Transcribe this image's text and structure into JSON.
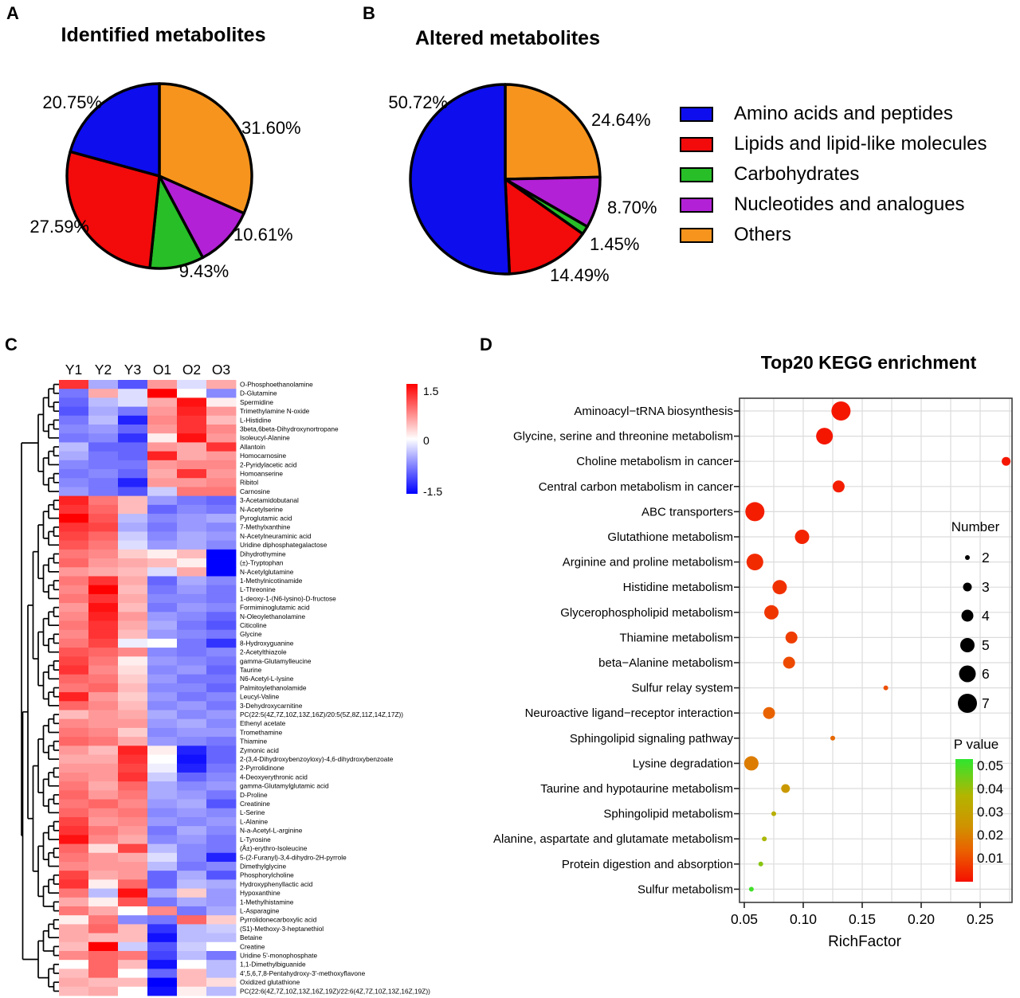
{
  "panels": {
    "a": "A",
    "b": "B",
    "c": "C",
    "d": "D"
  },
  "categories": [
    {
      "label": "Amino acids and peptides",
      "color": "#0D0DEE"
    },
    {
      "label": "Lipids and lipid-like molecules",
      "color": "#F30A0A"
    },
    {
      "label": "Carbohydrates",
      "color": "#27BE27"
    },
    {
      "label": "Nucleotides and analogues",
      "color": "#B221D6"
    },
    {
      "label": "Others",
      "color": "#F7941D"
    }
  ],
  "chart_data": [
    {
      "type": "pie",
      "panel": "A",
      "title": "Identified metabolites",
      "slices": [
        {
          "category": 4,
          "label": "31.60%",
          "value": 31.6
        },
        {
          "category": 3,
          "label": "10.61%",
          "value": 10.61
        },
        {
          "category": 2,
          "label": "9.43%",
          "value": 9.43
        },
        {
          "category": 1,
          "label": "27.59%",
          "value": 27.59
        },
        {
          "category": 0,
          "label": "20.75%",
          "value": 20.75
        }
      ]
    },
    {
      "type": "pie",
      "panel": "B",
      "title": "Altered metabolites",
      "slices": [
        {
          "category": 4,
          "label": "24.64%",
          "value": 24.64
        },
        {
          "category": 3,
          "label": "8.70%",
          "value": 8.7
        },
        {
          "category": 2,
          "label": "1.45%",
          "value": 1.45
        },
        {
          "category": 1,
          "label": "14.49%",
          "value": 14.49
        },
        {
          "category": 0,
          "label": "50.72%",
          "value": 50.72
        }
      ]
    },
    {
      "type": "heatmap",
      "panel": "C",
      "columns": [
        "Y1",
        "Y2",
        "Y3",
        "O1",
        "O2",
        "O3"
      ],
      "colorbar": {
        "max": 1.5,
        "mid": 0,
        "min": -1.5,
        "labels": [
          "1.5",
          "0",
          "-1.5"
        ],
        "max_color": "#FF0000",
        "mid_color": "#FFFFFF",
        "min_color": "#0000FF"
      },
      "rows": [
        {
          "name": "O-Phosphoethanolamine",
          "values": [
            1.2,
            -0.5,
            -1.0,
            0.6,
            -0.2,
            0.5
          ]
        },
        {
          "name": "D-Glutamine",
          "values": [
            -0.8,
            0.5,
            -0.2,
            1.5,
            0.0,
            -0.7
          ]
        },
        {
          "name": "Spermidine",
          "values": [
            -0.9,
            -0.4,
            -0.2,
            0.5,
            1.4,
            0.1
          ]
        },
        {
          "name": "Trimethylamine N-oxide",
          "values": [
            -1.0,
            -0.5,
            -0.8,
            0.6,
            1.3,
            0.6
          ]
        },
        {
          "name": "L-Histidine",
          "values": [
            -0.8,
            -0.4,
            -1.3,
            0.7,
            1.2,
            0.4
          ]
        },
        {
          "name": "3beta,6beta-Dihydroxynortropane",
          "values": [
            -0.7,
            -0.6,
            -0.9,
            0.6,
            1.2,
            0.7
          ]
        },
        {
          "name": "Isoleucyl-Alanine",
          "values": [
            -0.8,
            -0.7,
            -1.2,
            0.1,
            1.4,
            0.6
          ]
        },
        {
          "name": "Allantoin",
          "values": [
            -0.4,
            -0.9,
            -0.9,
            0.6,
            0.5,
            1.2
          ]
        },
        {
          "name": "Homocarnosine",
          "values": [
            -0.5,
            -0.8,
            -0.9,
            1.3,
            0.5,
            0.6
          ]
        },
        {
          "name": "2-Pyridylacetic acid",
          "values": [
            -0.7,
            -0.8,
            -0.8,
            0.6,
            0.7,
            0.7
          ]
        },
        {
          "name": "Homoanserine",
          "values": [
            -0.8,
            -0.7,
            -0.9,
            0.5,
            1.2,
            0.6
          ]
        },
        {
          "name": "Ribitol",
          "values": [
            -0.7,
            -0.8,
            -1.3,
            0.6,
            0.6,
            0.7
          ]
        },
        {
          "name": "Carnosine",
          "values": [
            -0.6,
            -0.8,
            -1.0,
            -0.3,
            0.8,
            0.8
          ]
        },
        {
          "name": "3-Acetamidobutanal",
          "values": [
            1.3,
            0.8,
            0.4,
            -0.6,
            -0.8,
            -0.9
          ]
        },
        {
          "name": "N-Acetylserine",
          "values": [
            1.2,
            0.9,
            0.4,
            -0.9,
            -0.7,
            -0.8
          ]
        },
        {
          "name": "Pyroglutamic acid",
          "values": [
            1.5,
            1.0,
            -0.4,
            -0.7,
            -0.6,
            -0.5
          ]
        },
        {
          "name": "7-Methylxanthine",
          "values": [
            1.2,
            1.1,
            -0.5,
            -0.8,
            -0.6,
            -0.7
          ]
        },
        {
          "name": "N-Acetylneuraminic acid",
          "values": [
            1.1,
            0.9,
            -0.3,
            -0.7,
            -0.5,
            -0.6
          ]
        },
        {
          "name": "Uridine diphosphategalactose",
          "values": [
            1.0,
            0.8,
            -0.2,
            -0.6,
            -0.5,
            -0.7
          ]
        },
        {
          "name": "Dihydrothymine",
          "values": [
            0.8,
            0.7,
            0.3,
            0.1,
            0.4,
            -1.5
          ]
        },
        {
          "name": "(±)-Tryptophan",
          "values": [
            0.9,
            0.6,
            0.5,
            0.4,
            0.1,
            -1.5
          ]
        },
        {
          "name": "N-Acetylglutamine",
          "values": [
            0.6,
            0.5,
            0.4,
            -0.2,
            0.5,
            -1.5
          ]
        },
        {
          "name": "1-Methylnicotinamide",
          "values": [
            0.8,
            1.2,
            0.5,
            -0.9,
            -0.5,
            -0.7
          ]
        },
        {
          "name": "L-Threonine",
          "values": [
            0.7,
            1.5,
            0.4,
            -0.8,
            -0.6,
            -0.8
          ]
        },
        {
          "name": "1-deoxy-1-(N6-lysino)-D-fructose",
          "values": [
            0.8,
            1.2,
            0.5,
            -0.7,
            -0.7,
            -0.8
          ]
        },
        {
          "name": "Formiminoglutamic acid",
          "values": [
            0.6,
            1.4,
            0.4,
            -0.8,
            -0.6,
            -0.7
          ]
        },
        {
          "name": "N-Oleoylethanolamine",
          "values": [
            0.7,
            1.3,
            0.6,
            -0.6,
            -0.7,
            -0.9
          ]
        },
        {
          "name": "Citicoline",
          "values": [
            0.8,
            1.2,
            0.5,
            -0.5,
            -0.8,
            -1.0
          ]
        },
        {
          "name": "Glycine",
          "values": [
            0.7,
            1.2,
            0.4,
            -0.6,
            -0.7,
            -0.8
          ]
        },
        {
          "name": "8-Hydroxyguanine",
          "values": [
            0.8,
            1.1,
            -0.1,
            0.0,
            -0.8,
            -1.2
          ]
        },
        {
          "name": "2-Acetylthiazole",
          "values": [
            1.0,
            0.9,
            0.7,
            -0.7,
            -0.8,
            -0.7
          ]
        },
        {
          "name": "gamma-Glutamylleucine",
          "values": [
            1.1,
            0.8,
            0.1,
            -0.6,
            -0.7,
            -0.8
          ]
        },
        {
          "name": "Taurine",
          "values": [
            1.2,
            0.7,
            0.2,
            -0.7,
            -0.6,
            -0.9
          ]
        },
        {
          "name": "N6-Acetyl-L-lysine",
          "values": [
            0.9,
            0.8,
            0.3,
            -0.6,
            -0.8,
            -0.8
          ]
        },
        {
          "name": "Palmitoylethanolamide",
          "values": [
            0.8,
            0.9,
            0.4,
            -0.7,
            -0.7,
            -0.9
          ]
        },
        {
          "name": "Leucyl-Valine",
          "values": [
            1.3,
            0.6,
            0.3,
            -0.6,
            -0.8,
            -0.7
          ]
        },
        {
          "name": "3-Dehydroxycarnitine",
          "values": [
            0.9,
            0.7,
            0.4,
            -0.7,
            -0.6,
            -0.8
          ]
        },
        {
          "name": "PC(22:5(4Z,7Z,10Z,13Z,16Z)/20:5(5Z,8Z,11Z,14Z,17Z))",
          "values": [
            0.4,
            0.6,
            0.5,
            -0.5,
            -0.7,
            -0.6
          ]
        },
        {
          "name": "Ethenyl acetate",
          "values": [
            0.7,
            0.6,
            0.6,
            -0.6,
            -0.5,
            -0.7
          ]
        },
        {
          "name": "Tromethamine",
          "values": [
            0.8,
            0.7,
            0.3,
            -0.7,
            -0.6,
            -0.6
          ]
        },
        {
          "name": "Thiamine",
          "values": [
            0.9,
            0.8,
            0.5,
            -0.6,
            -0.7,
            -0.8
          ]
        },
        {
          "name": "Zymonic acid",
          "values": [
            0.6,
            0.4,
            1.3,
            0.1,
            -1.3,
            -0.9
          ]
        },
        {
          "name": "2-(3,4-Dihydroxybenzoyloxy)-4,6-dihydroxybenzoate",
          "values": [
            0.5,
            0.5,
            1.2,
            0.0,
            -1.4,
            -0.9
          ]
        },
        {
          "name": "2-Pyrrolidinone",
          "values": [
            0.6,
            0.6,
            1.1,
            -0.1,
            -1.3,
            -0.8
          ]
        },
        {
          "name": "4-Deoxyerythronic acid",
          "values": [
            0.7,
            0.6,
            1.2,
            -0.3,
            -0.9,
            -0.7
          ]
        },
        {
          "name": "gamma-Glutamylglutamic acid",
          "values": [
            0.8,
            0.5,
            0.9,
            -0.5,
            -0.7,
            -0.6
          ]
        },
        {
          "name": "D-Proline",
          "values": [
            0.9,
            0.6,
            0.8,
            -0.5,
            -0.6,
            -0.8
          ]
        },
        {
          "name": "Creatinine",
          "values": [
            0.8,
            0.9,
            0.7,
            -0.6,
            -0.5,
            -1.0
          ]
        },
        {
          "name": "L-Serine",
          "values": [
            0.9,
            0.7,
            0.8,
            -0.7,
            -0.6,
            -0.7
          ]
        },
        {
          "name": "L-Alanine",
          "values": [
            1.1,
            0.6,
            0.7,
            -0.6,
            -0.7,
            -0.6
          ]
        },
        {
          "name": "N-a-Acetyl-L-arginine",
          "values": [
            1.2,
            0.8,
            0.6,
            -0.8,
            -0.5,
            -0.7
          ]
        },
        {
          "name": "L-Tyrosine",
          "values": [
            1.4,
            0.7,
            0.5,
            -0.7,
            -0.6,
            -0.8
          ]
        },
        {
          "name": "(Å±)-erythro-Isoleucine",
          "values": [
            0.9,
            0.2,
            1.1,
            -0.4,
            -0.7,
            -0.8
          ]
        },
        {
          "name": "5-(2-Furanyl)-3,4-dihydro-2H-pyrrole",
          "values": [
            0.8,
            0.6,
            0.5,
            -0.2,
            -0.7,
            -1.3
          ]
        },
        {
          "name": "Dimethylglycine",
          "values": [
            0.7,
            0.6,
            0.6,
            -0.4,
            -0.8,
            -0.7
          ]
        },
        {
          "name": "Phosphorylcholine",
          "values": [
            1.1,
            0.5,
            0.6,
            -0.9,
            -0.5,
            -1.0
          ]
        },
        {
          "name": "Hydroxyphenyllactic acid",
          "values": [
            1.2,
            0.1,
            0.9,
            -0.9,
            -0.4,
            -0.5
          ]
        },
        {
          "name": "Hypoxanthine",
          "values": [
            0.8,
            -0.4,
            1.4,
            -0.5,
            0.3,
            -0.6
          ]
        },
        {
          "name": "1-Methylhistamine",
          "values": [
            0.5,
            0.1,
            1.0,
            -0.8,
            -0.5,
            -0.6
          ]
        },
        {
          "name": "L-Asparagine",
          "values": [
            0.8,
            0.5,
            0.0,
            0.7,
            -0.8,
            -0.5
          ]
        },
        {
          "name": "Pyrrolidonecarboxylic acid",
          "values": [
            0.1,
            0.8,
            -0.7,
            -0.8,
            0.9,
            0.3
          ]
        },
        {
          "name": "(S1)-Methoxy-3-heptanethiol",
          "values": [
            0.5,
            0.9,
            0.4,
            -1.2,
            -0.4,
            -0.3
          ]
        },
        {
          "name": "Betaine",
          "values": [
            0.5,
            0.4,
            0.4,
            -1.4,
            -0.4,
            -0.4
          ]
        },
        {
          "name": "Creatine",
          "values": [
            0.4,
            1.5,
            -0.3,
            -1.0,
            -0.3,
            0.0
          ]
        },
        {
          "name": "Uridine 5'-monophosphate",
          "values": [
            0.7,
            0.9,
            0.8,
            -1.1,
            -0.4,
            -0.8
          ]
        },
        {
          "name": "1,1-Dimethylbiguanide",
          "values": [
            0.0,
            0.9,
            0.4,
            -1.4,
            0.0,
            -0.4
          ]
        },
        {
          "name": "4',5,6,7,8-Pentahydroxy-3'-methoxyflavone",
          "values": [
            0.4,
            0.9,
            0.0,
            -0.9,
            0.4,
            -0.4
          ]
        },
        {
          "name": "Oxidized glutathione",
          "values": [
            0.5,
            0.4,
            0.4,
            -1.5,
            0.4,
            0.2
          ]
        },
        {
          "name": "PC(22:6(4Z,7Z,10Z,13Z,16Z,19Z)/22:6(4Z,7Z,10Z,13Z,16Z,19Z))",
          "values": [
            0.4,
            0.5,
            0.0,
            -1.4,
            0.1,
            -0.4
          ]
        }
      ]
    },
    {
      "type": "bubble",
      "panel": "D",
      "title": "Top20 KEGG enrichment",
      "xlabel": "RichFactor",
      "x_ticks": [
        "0.05",
        "0.10",
        "0.15",
        "0.20",
        "0.25"
      ],
      "x_range": [
        0.046,
        0.277
      ],
      "size_legend": {
        "title": "Number",
        "values": [
          2,
          3,
          4,
          5,
          6,
          7
        ]
      },
      "color_legend": {
        "title": "P value",
        "labels": [
          "0.05",
          "0.04",
          "0.03",
          "0.02",
          "0.01"
        ],
        "stops": [
          "#2FE62F",
          "#B4B400",
          "#D09200",
          "#EA6000",
          "#F61000"
        ]
      },
      "pathways": [
        {
          "name": "Aminoacyl−tRNA biosynthesis",
          "rich_factor": 0.132,
          "number": 7,
          "p_value": 0.001
        },
        {
          "name": "Glycine, serine and threonine metabolism",
          "rich_factor": 0.118,
          "number": 6,
          "p_value": 0.001
        },
        {
          "name": "Choline metabolism in cancer",
          "rich_factor": 0.272,
          "number": 3,
          "p_value": 0.001
        },
        {
          "name": "Central carbon metabolism in cancer",
          "rich_factor": 0.13,
          "number": 4,
          "p_value": 0.002
        },
        {
          "name": "ABC transporters",
          "rich_factor": 0.059,
          "number": 7,
          "p_value": 0.002
        },
        {
          "name": "Glutathione metabolism",
          "rich_factor": 0.099,
          "number": 5,
          "p_value": 0.003
        },
        {
          "name": "Arginine and proline metabolism",
          "rich_factor": 0.059,
          "number": 6,
          "p_value": 0.004
        },
        {
          "name": "Histidine metabolism",
          "rich_factor": 0.08,
          "number": 5,
          "p_value": 0.005
        },
        {
          "name": "Glycerophospholipid metabolism",
          "rich_factor": 0.073,
          "number": 5,
          "p_value": 0.006
        },
        {
          "name": "Thiamine metabolism",
          "rich_factor": 0.09,
          "number": 4,
          "p_value": 0.007
        },
        {
          "name": "beta−Alanine metabolism",
          "rich_factor": 0.088,
          "number": 4,
          "p_value": 0.009
        },
        {
          "name": "Sulfur relay system",
          "rich_factor": 0.17,
          "number": 2,
          "p_value": 0.01
        },
        {
          "name": "Neuroactive ligand−receptor interaction",
          "rich_factor": 0.071,
          "number": 4,
          "p_value": 0.013
        },
        {
          "name": "Sphingolipid signaling pathway",
          "rich_factor": 0.125,
          "number": 2,
          "p_value": 0.014
        },
        {
          "name": "Lysine degradation",
          "rich_factor": 0.056,
          "number": 5,
          "p_value": 0.018
        },
        {
          "name": "Taurine and hypotaurine metabolism",
          "rich_factor": 0.085,
          "number": 3,
          "p_value": 0.025
        },
        {
          "name": "Sphingolipid metabolism",
          "rich_factor": 0.075,
          "number": 2,
          "p_value": 0.033
        },
        {
          "name": "Alanine, aspartate and glutamate metabolism",
          "rich_factor": 0.067,
          "number": 2,
          "p_value": 0.036
        },
        {
          "name": "Protein digestion and absorption",
          "rich_factor": 0.064,
          "number": 2,
          "p_value": 0.04
        },
        {
          "name": "Sulfur metabolism",
          "rich_factor": 0.056,
          "number": 2,
          "p_value": 0.048
        }
      ]
    }
  ]
}
